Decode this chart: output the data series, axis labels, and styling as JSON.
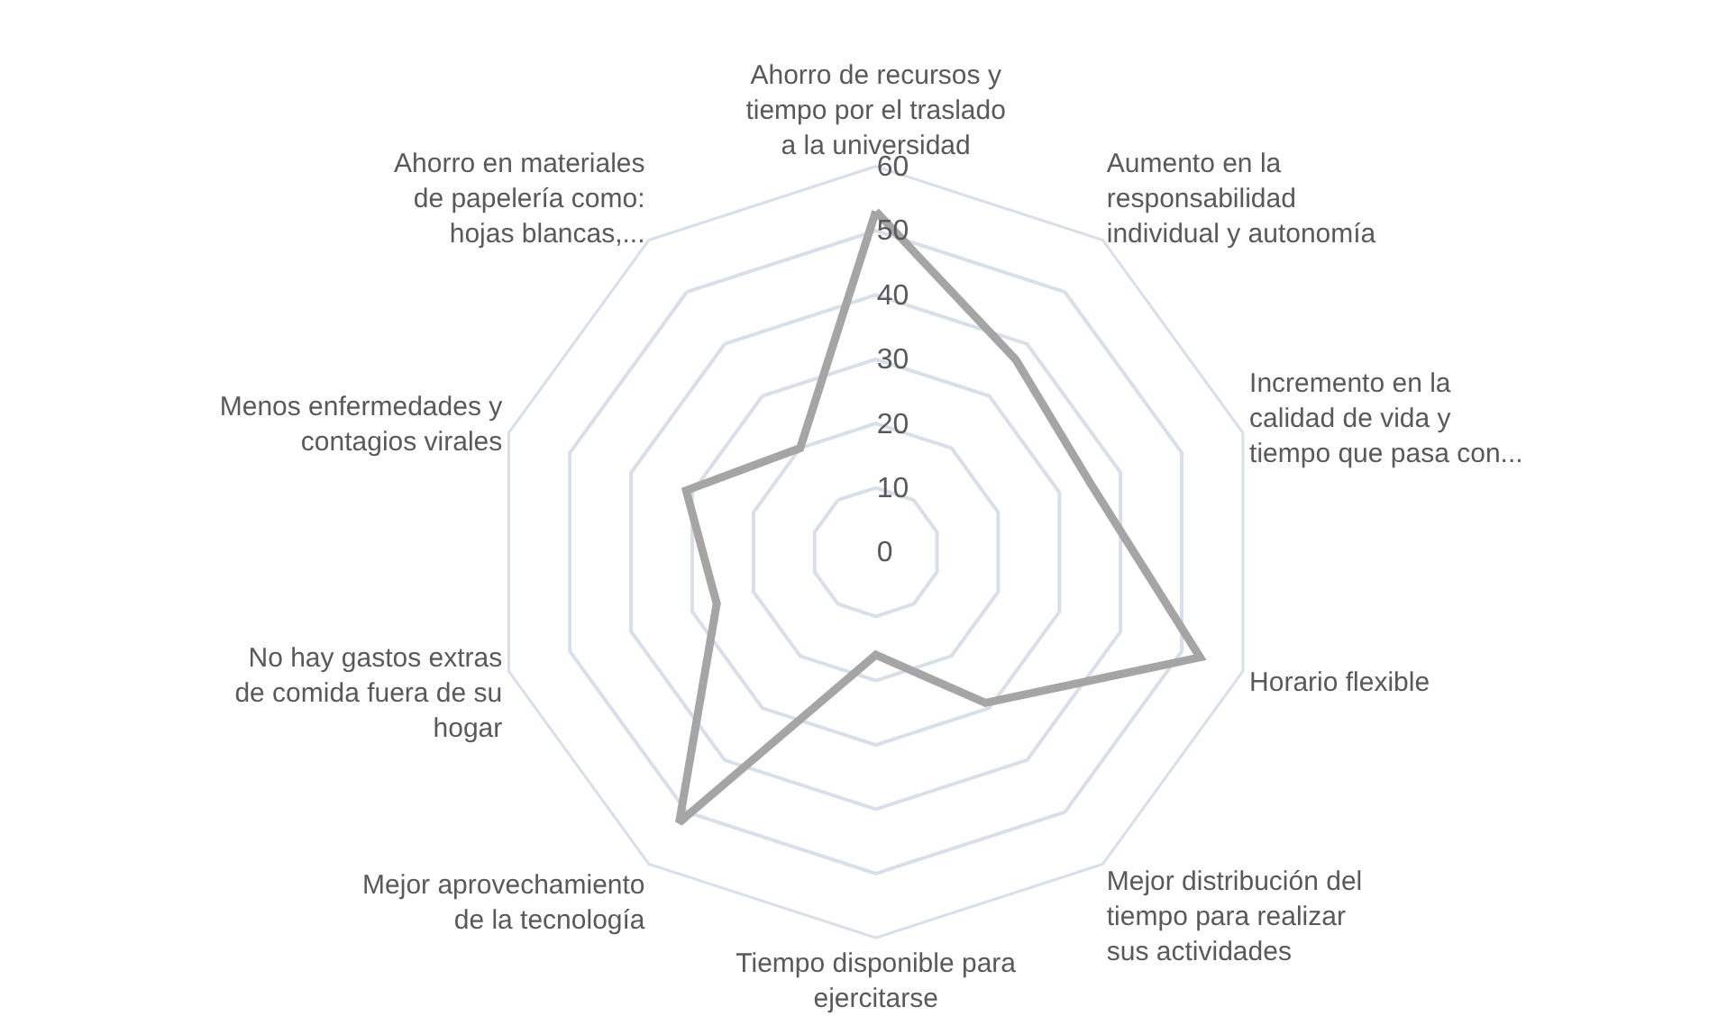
{
  "chart_data": {
    "type": "radar",
    "categories": [
      "Ahorro de recursos y tiempo por el traslado a la universidad",
      "Aumento en la responsabilidad individual y autonomía",
      "Incremento en la calidad de vida y tiempo que pasa con...",
      "Horario flexible",
      "Mejor distribución del tiempo para realizar sus actividades",
      "Tiempo disponible para ejercitarse",
      "Mejor aprovechamiento de la tecnología",
      "No hay gastos extras de comida fuera de su hogar",
      "Menos enfermedades y contagios virales",
      "Ahorro en materiales de papelería como: hojas blancas,..."
    ],
    "series": [
      {
        "color": "#a5a5a5",
        "values": [
          53,
          37,
          35,
          53,
          29,
          16,
          52,
          26,
          31,
          20
        ]
      }
    ],
    "ylim": [
      0,
      60
    ],
    "yticks": [
      0,
      10,
      20,
      30,
      40,
      50,
      60
    ],
    "grid": true,
    "marker": "none",
    "line_style": "solid"
  }
}
